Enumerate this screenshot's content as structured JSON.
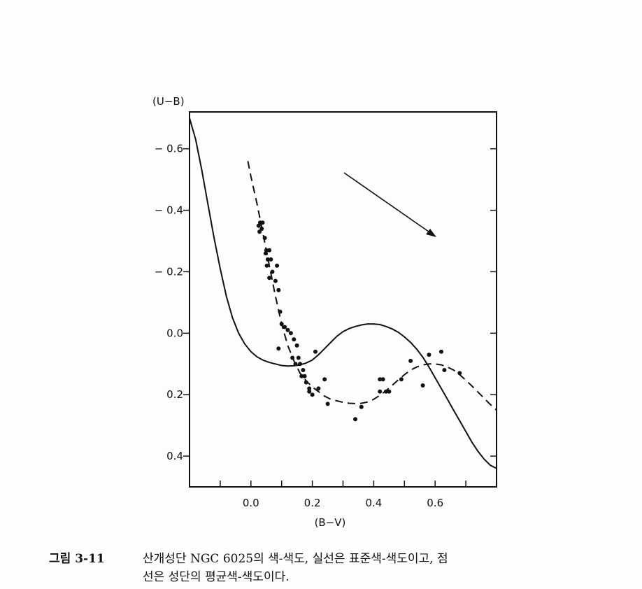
{
  "chart_data": {
    "type": "scatter",
    "title": "",
    "xlabel": "(B−V)",
    "ylabel": "(U−B)",
    "xlim": [
      -0.2,
      0.8
    ],
    "ylim": [
      -0.72,
      0.5
    ],
    "y_inverted": true,
    "x_ticks": [
      {
        "value": 0.0,
        "label": "0.0"
      },
      {
        "value": 0.2,
        "label": "0.2"
      },
      {
        "value": 0.4,
        "label": "0.4"
      },
      {
        "value": 0.6,
        "label": "0.6"
      }
    ],
    "x_minor_ticks": [
      -0.1,
      0.1,
      0.3,
      0.5,
      0.7
    ],
    "y_ticks": [
      {
        "value": -0.6,
        "label": "− 0.6"
      },
      {
        "value": -0.4,
        "label": "− 0.4"
      },
      {
        "value": -0.2,
        "label": "− 0.2"
      },
      {
        "value": 0.0,
        "label": "0.0"
      },
      {
        "value": 0.2,
        "label": "0.2"
      },
      {
        "value": 0.4,
        "label": "0.4"
      }
    ],
    "series": [
      {
        "style": "solid",
        "kind": "line",
        "color": "#111111",
        "x": [
          -0.2,
          -0.18,
          -0.16,
          -0.14,
          -0.12,
          -0.1,
          -0.08,
          -0.06,
          -0.04,
          -0.02,
          0.0,
          0.02,
          0.04,
          0.06,
          0.08,
          0.1,
          0.12,
          0.14,
          0.16,
          0.18,
          0.2,
          0.22,
          0.24,
          0.26,
          0.28,
          0.3,
          0.32,
          0.34,
          0.36,
          0.38,
          0.4,
          0.42,
          0.44,
          0.46,
          0.48,
          0.5,
          0.52,
          0.54,
          0.56,
          0.58,
          0.6,
          0.62,
          0.64,
          0.66,
          0.68,
          0.7,
          0.72,
          0.74,
          0.76,
          0.78,
          0.8
        ],
        "y": [
          -0.7,
          -0.63,
          -0.53,
          -0.42,
          -0.31,
          -0.21,
          -0.12,
          -0.05,
          0.0,
          0.035,
          0.06,
          0.077,
          0.088,
          0.095,
          0.1,
          0.105,
          0.107,
          0.106,
          0.103,
          0.097,
          0.087,
          0.07,
          0.05,
          0.03,
          0.01,
          -0.005,
          -0.015,
          -0.022,
          -0.027,
          -0.03,
          -0.03,
          -0.028,
          -0.022,
          -0.014,
          -0.003,
          0.012,
          0.03,
          0.052,
          0.078,
          0.11,
          0.145,
          0.18,
          0.215,
          0.25,
          0.285,
          0.32,
          0.355,
          0.385,
          0.41,
          0.43,
          0.44
        ]
      },
      {
        "style": "dashed",
        "kind": "line",
        "color": "#111111",
        "x": [
          -0.01,
          0.0,
          0.02,
          0.04,
          0.06,
          0.08,
          0.1,
          0.12,
          0.14,
          0.16,
          0.18,
          0.2,
          0.22,
          0.24,
          0.26,
          0.28,
          0.3,
          0.32,
          0.34,
          0.36,
          0.38,
          0.4,
          0.42,
          0.44,
          0.46,
          0.48,
          0.5,
          0.52,
          0.54,
          0.56,
          0.58,
          0.6,
          0.62,
          0.64,
          0.66,
          0.68,
          0.7,
          0.72,
          0.74,
          0.76,
          0.78,
          0.8
        ],
        "y": [
          -0.56,
          -0.51,
          -0.42,
          -0.32,
          -0.22,
          -0.12,
          -0.03,
          0.04,
          0.09,
          0.13,
          0.155,
          0.175,
          0.19,
          0.205,
          0.215,
          0.22,
          0.225,
          0.228,
          0.229,
          0.228,
          0.224,
          0.215,
          0.202,
          0.187,
          0.17,
          0.152,
          0.135,
          0.12,
          0.11,
          0.103,
          0.1,
          0.1,
          0.103,
          0.11,
          0.12,
          0.135,
          0.153,
          0.172,
          0.192,
          0.212,
          0.232,
          0.25
        ]
      },
      {
        "kind": "scatter",
        "color": "#111111",
        "x": [
          0.025,
          0.03,
          0.035,
          0.028,
          0.038,
          0.045,
          0.05,
          0.055,
          0.06,
          0.048,
          0.052,
          0.065,
          0.07,
          0.06,
          0.08,
          0.085,
          0.09,
          0.095,
          0.1,
          0.09,
          0.11,
          0.12,
          0.13,
          0.14,
          0.15,
          0.155,
          0.16,
          0.17,
          0.165,
          0.175,
          0.18,
          0.19,
          0.21,
          0.2,
          0.22,
          0.24,
          0.19,
          0.25,
          0.34,
          0.36,
          0.42,
          0.43,
          0.44,
          0.45,
          0.42,
          0.49,
          0.52,
          0.56,
          0.58,
          0.62,
          0.63,
          0.68,
          0.145,
          0.135
        ],
        "y": [
          -0.35,
          -0.36,
          -0.34,
          -0.33,
          -0.36,
          -0.31,
          -0.27,
          -0.24,
          -0.27,
          -0.26,
          -0.22,
          -0.24,
          -0.2,
          -0.18,
          -0.17,
          -0.22,
          -0.14,
          -0.07,
          -0.03,
          0.05,
          -0.02,
          -0.01,
          0.0,
          0.02,
          0.04,
          0.08,
          0.1,
          0.12,
          0.14,
          0.14,
          0.16,
          0.18,
          0.06,
          0.2,
          0.18,
          0.15,
          0.19,
          0.23,
          0.28,
          0.24,
          0.15,
          0.15,
          0.19,
          0.19,
          0.19,
          0.15,
          0.09,
          0.17,
          0.07,
          0.06,
          0.12,
          0.13,
          0.1,
          0.08
        ]
      }
    ]
  },
  "caption": {
    "label": "그림 3-11",
    "line1": "산개성단 NGC 6025의 색-색도, 실선은 표준색-색도이고, 점",
    "line2": "선은 성단의 평균색-색도이다."
  }
}
